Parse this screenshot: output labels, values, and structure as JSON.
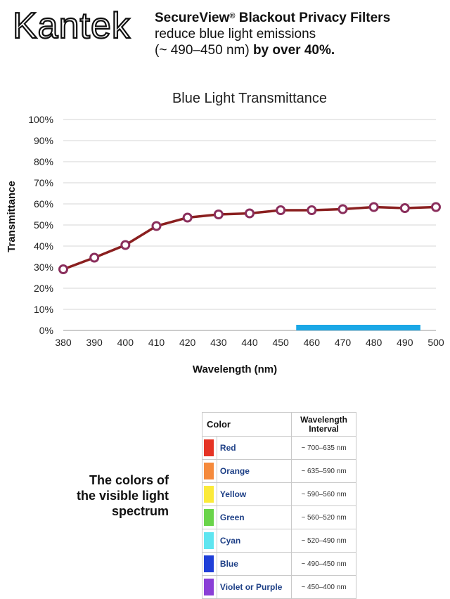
{
  "header": {
    "logo_text": "Kantek",
    "tagline_line1": "SecureView",
    "tagline_reg": "®",
    "tagline_line1_rest": " Blackout Privacy Filters",
    "tagline_line2": "reduce blue light emissions",
    "tagline_line3_a": "(~ 490–450 nm) ",
    "tagline_line3_b": "by over 40%."
  },
  "chart_data": {
    "type": "line",
    "title": "Blue Light Transmittance",
    "xlabel": "Wavelength (nm)",
    "ylabel": "Transmittance",
    "x": [
      380,
      390,
      400,
      410,
      420,
      430,
      440,
      450,
      460,
      470,
      480,
      490,
      500
    ],
    "series": [
      {
        "name": "Transmittance",
        "values": [
          29,
          34.5,
          40.5,
          49.5,
          53.5,
          55,
          55.5,
          57,
          57,
          57.5,
          58.5,
          58,
          58.5
        ]
      }
    ],
    "xticks": [
      "380",
      "390",
      "400",
      "410",
      "420",
      "430",
      "440",
      "450",
      "460",
      "470",
      "480",
      "490",
      "500"
    ],
    "yticks": [
      "0%",
      "10%",
      "20%",
      "30%",
      "40%",
      "50%",
      "60%",
      "70%",
      "80%",
      "90%",
      "100%"
    ],
    "xlim": [
      380,
      500
    ],
    "ylim": [
      0,
      100
    ],
    "highlight_range": {
      "from": 455,
      "to": 495,
      "color": "#1aa7e6"
    },
    "grid": true,
    "line_color": "#8a1f1f",
    "marker_fill": "#ffffff",
    "marker_edge": "#8a2e5c"
  },
  "spectrum": {
    "caption_lines": [
      "The colors of",
      "the visible light",
      "spectrum"
    ],
    "header_color": "Color",
    "header_interval_line1": "Wavelength",
    "header_interval_line2": "Interval",
    "rows": [
      {
        "name": "Red",
        "range": "~ 700–635 nm",
        "color": "#e53324"
      },
      {
        "name": "Orange",
        "range": "~ 635–590 nm",
        "color": "#f58a3c"
      },
      {
        "name": "Yellow",
        "range": "~ 590–560 nm",
        "color": "#fbea3a"
      },
      {
        "name": "Green",
        "range": "~ 560–520 nm",
        "color": "#6ad44a"
      },
      {
        "name": "Cyan",
        "range": "~ 520–490 nm",
        "color": "#5fe5f0"
      },
      {
        "name": "Blue",
        "range": "~ 490–450 nm",
        "color": "#1f3fd8"
      },
      {
        "name": "Violet or Purple",
        "range": "~ 450–400 nm",
        "color": "#8a3fd6"
      }
    ]
  }
}
